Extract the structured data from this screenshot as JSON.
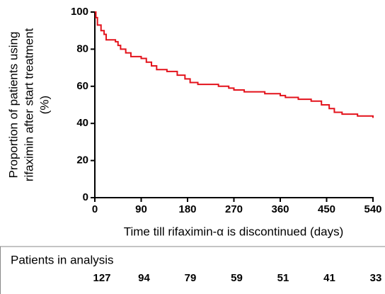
{
  "chart_data": {
    "type": "step",
    "ylabel": [
      "Proportion of patients using",
      "rifaximin after start treatment",
      "(%)"
    ],
    "xlabel": "Time till rifaximin-α is discontinued (days)",
    "xlim": [
      0,
      540
    ],
    "xticks": [
      0,
      90,
      180,
      270,
      360,
      450,
      540
    ],
    "ylim": [
      0,
      100
    ],
    "yticks": [
      0,
      20,
      40,
      60,
      80,
      100
    ],
    "series": [
      {
        "color": "#e3121b",
        "x": [
          0,
          2,
          5,
          12,
          18,
          22,
          40,
          45,
          50,
          60,
          70,
          90,
          100,
          110,
          120,
          140,
          160,
          175,
          185,
          200,
          240,
          260,
          270,
          290,
          330,
          360,
          370,
          395,
          420,
          440,
          455,
          465,
          480,
          510,
          540
        ],
        "values": [
          100,
          97,
          93,
          90,
          88,
          85,
          84,
          82,
          80,
          78,
          76,
          75,
          73,
          71,
          69,
          68,
          66,
          64,
          62,
          61,
          60,
          59,
          58,
          57,
          56,
          55,
          54,
          53,
          52,
          50,
          48,
          46,
          45,
          44,
          43
        ]
      }
    ],
    "at_risk": {
      "title": "Patients in analysis",
      "values": [
        127,
        94,
        79,
        59,
        51,
        41,
        33
      ]
    }
  }
}
